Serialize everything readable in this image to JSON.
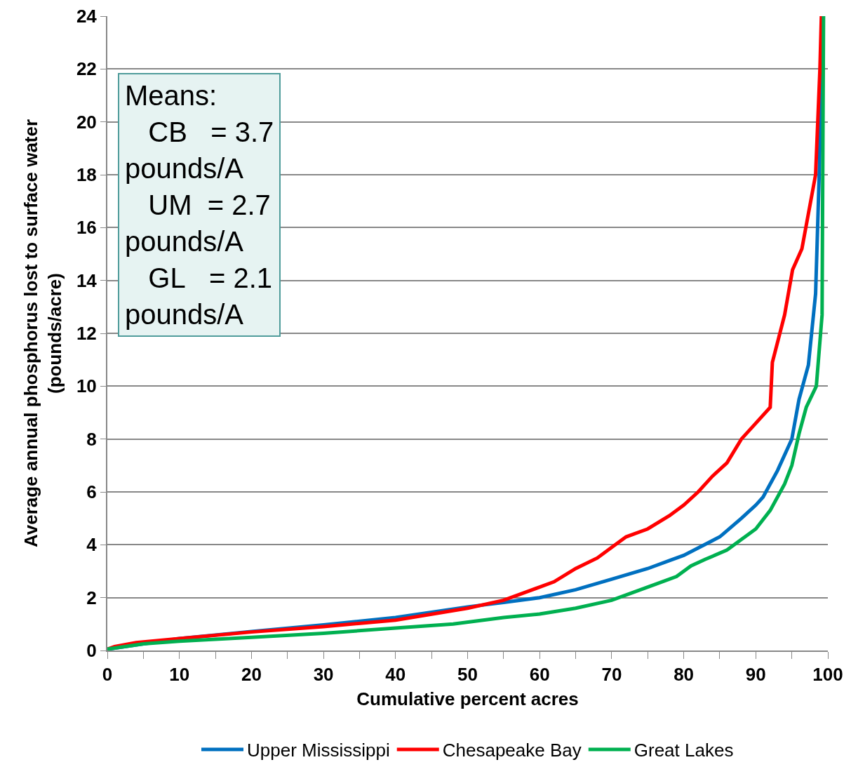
{
  "chart_data": {
    "type": "line",
    "xlabel": "Cumulative percent acres",
    "ylabel": "Average annual phosphorus lost to surface water\n(pounds/acre)",
    "annotations": [
      "Means:\n   CB   = 3.7\npounds/A\n   UM  = 2.7\npounds/A\n   GL   = 2.1\npounds/A"
    ],
    "xlim": [
      0,
      100
    ],
    "xticks": [
      0,
      10,
      20,
      30,
      40,
      50,
      60,
      70,
      80,
      90,
      100
    ],
    "ylim": [
      0,
      24
    ],
    "yticks": [
      0,
      2,
      4,
      6,
      8,
      10,
      12,
      14,
      16,
      18,
      20,
      22,
      24
    ],
    "grid": "y",
    "legend": "bottom",
    "marker": "none",
    "line_style": "solid",
    "series": [
      {
        "name": "Upper Mississippi",
        "color": "#0070c0",
        "x": [
          0,
          10,
          20,
          30,
          40,
          50,
          55,
          60,
          65,
          70,
          75,
          78,
          80,
          85,
          88,
          90,
          91,
          93,
          95,
          96,
          97.3,
          98.3,
          98.8,
          99.3
        ],
        "values": [
          0.05,
          0.45,
          0.72,
          0.97,
          1.25,
          1.65,
          1.82,
          2.0,
          2.3,
          2.7,
          3.1,
          3.4,
          3.6,
          4.3,
          5.0,
          5.5,
          5.8,
          6.8,
          8.0,
          9.5,
          10.8,
          13.5,
          18,
          24
        ]
      },
      {
        "name": "Chesapeake Bay",
        "color": "#ff0000",
        "x": [
          0,
          1,
          4,
          10,
          20,
          30,
          40,
          50,
          55,
          58,
          60,
          62,
          65,
          68,
          70,
          72,
          75,
          78,
          80,
          82,
          84,
          86,
          88,
          90,
          92,
          92.3,
          94,
          95.1,
          96.4,
          98.3,
          98.9,
          99.1
        ],
        "values": [
          0.05,
          0.15,
          0.3,
          0.45,
          0.7,
          0.9,
          1.15,
          1.6,
          1.9,
          2.2,
          2.4,
          2.6,
          3.1,
          3.5,
          3.9,
          4.3,
          4.6,
          5.1,
          5.5,
          6.0,
          6.6,
          7.1,
          8.0,
          8.6,
          9.2,
          10.9,
          12.7,
          14.4,
          15.2,
          18,
          22,
          24
        ]
      },
      {
        "name": "Great Lakes",
        "color": "#00b050",
        "x": [
          0,
          5,
          10,
          20,
          30,
          40,
          48,
          55,
          60,
          65,
          70,
          73,
          76,
          79,
          81,
          83,
          86,
          88,
          90,
          92,
          94,
          95,
          96,
          97,
          98.4,
          99.2,
          99.4
        ],
        "values": [
          0.05,
          0.25,
          0.35,
          0.5,
          0.65,
          0.85,
          1.0,
          1.25,
          1.38,
          1.6,
          1.9,
          2.2,
          2.5,
          2.8,
          3.2,
          3.45,
          3.8,
          4.2,
          4.6,
          5.3,
          6.3,
          7.0,
          8.2,
          9.2,
          10.0,
          12.7,
          24
        ]
      }
    ]
  }
}
